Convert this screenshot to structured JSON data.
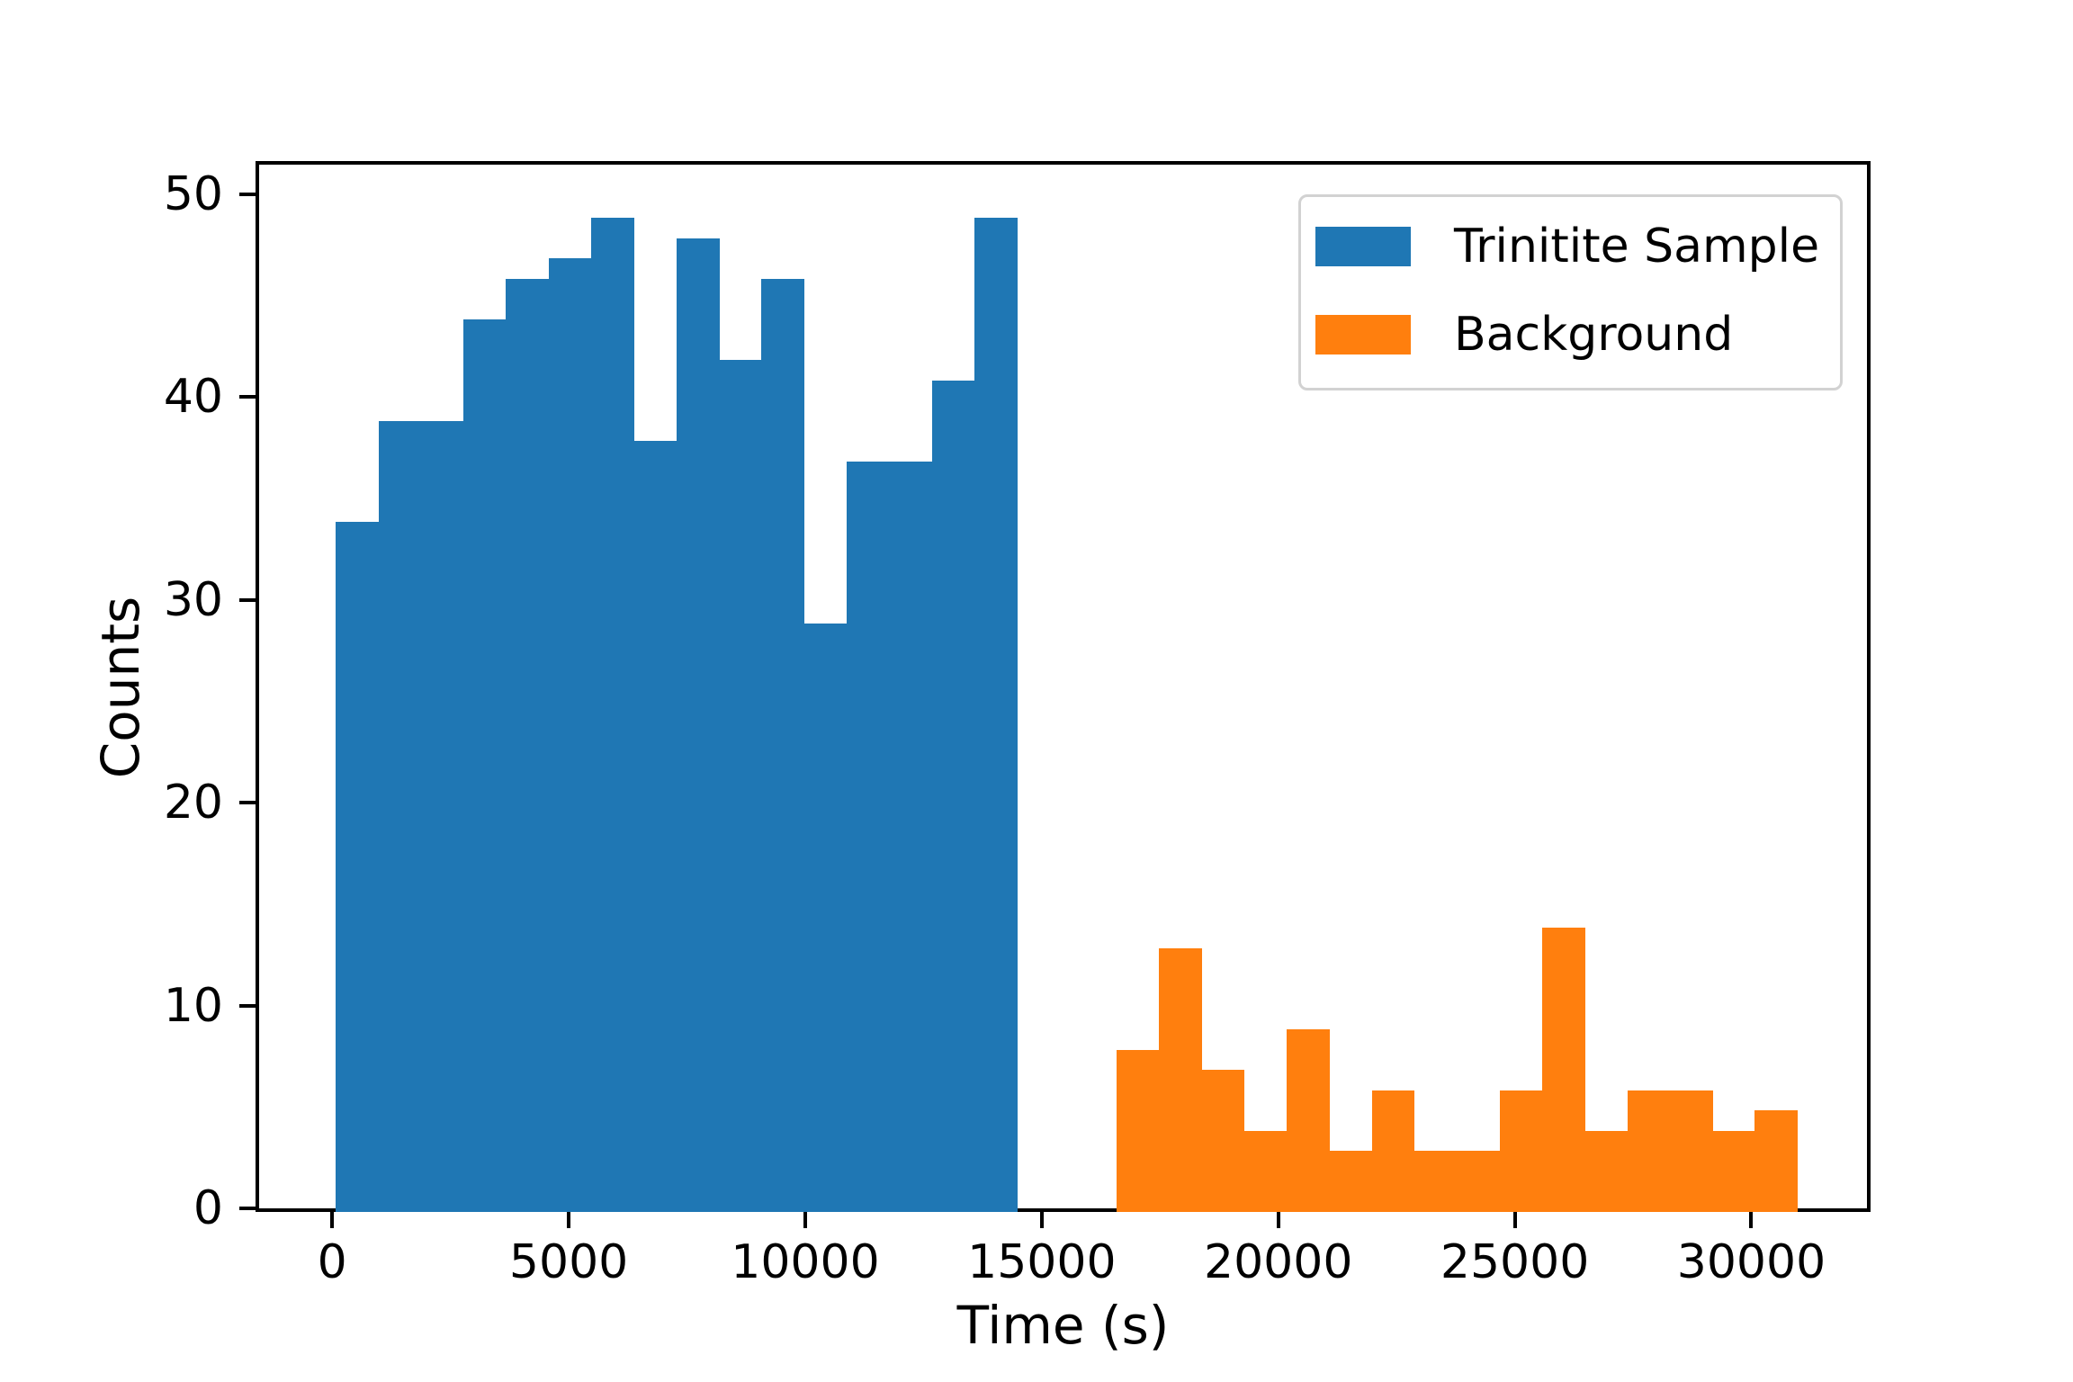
{
  "figure": {
    "background_color": "#ffffff",
    "text_color": "#000000"
  },
  "chart_data": {
    "type": "bar",
    "subtype": "histogram",
    "title": "",
    "xlabel": "Time (s)",
    "ylabel": "Counts",
    "xlim": [
      -1545,
      32445
    ],
    "ylim": [
      0,
      51.45
    ],
    "x_ticks": [
      0,
      5000,
      10000,
      15000,
      20000,
      25000,
      30000
    ],
    "y_ticks": [
      0,
      10,
      20,
      30,
      40,
      50
    ],
    "grid": false,
    "legend_position": "upper right",
    "bin_width": 900,
    "series": [
      {
        "name": "Trinitite Sample",
        "color": "#1f77b4",
        "bin_start": 0,
        "bin_end": 14400,
        "values": [
          34,
          39,
          39,
          44,
          46,
          47,
          49,
          38,
          48,
          42,
          46,
          29,
          37,
          37,
          41,
          49
        ]
      },
      {
        "name": "Background",
        "color": "#ff7f0e",
        "bin_start": 16500,
        "bin_end": 30900,
        "values": [
          8,
          13,
          7,
          4,
          9,
          3,
          6,
          3,
          3,
          6,
          14,
          4,
          6,
          6,
          4,
          5
        ]
      }
    ]
  }
}
